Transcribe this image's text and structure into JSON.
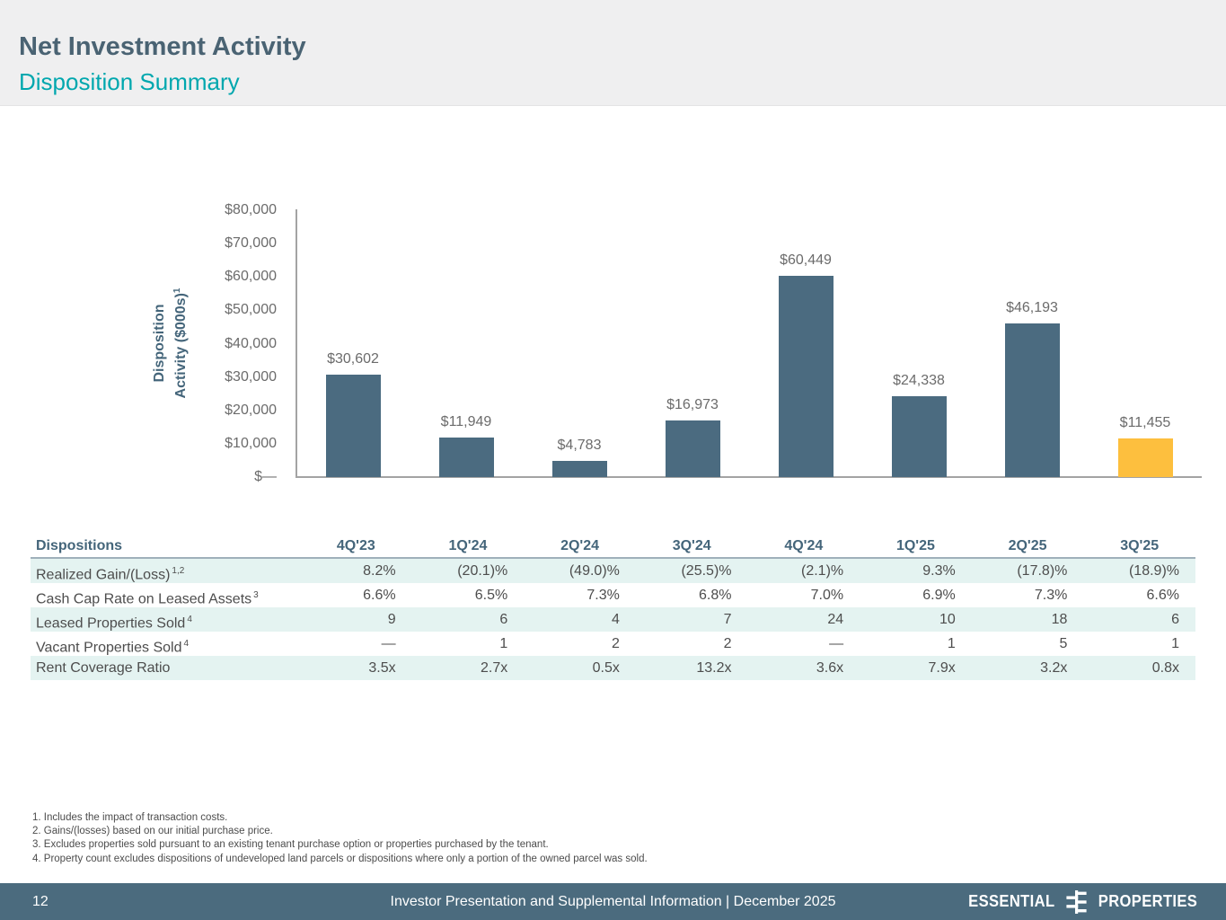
{
  "header": {
    "title": "Net Investment Activity",
    "subtitle": "Disposition Summary"
  },
  "chart_data": {
    "type": "bar",
    "categories": [
      "4Q'23",
      "1Q'24",
      "2Q'24",
      "3Q'24",
      "4Q'24",
      "1Q'25",
      "2Q'25",
      "3Q'25"
    ],
    "values": [
      30602,
      11949,
      4783,
      16973,
      60449,
      24338,
      46193,
      11455
    ],
    "value_labels": [
      "$30,602",
      "$11,949",
      "$4,783",
      "$16,973",
      "$60,449",
      "$24,338",
      "$46,193",
      "$11,455"
    ],
    "title": "",
    "xlabel": "",
    "ylabel": "Disposition Activity ($000s)",
    "ylabel_line1": "Disposition",
    "ylabel_line2": "Activity ($000s)",
    "ylabel_sup": "1",
    "ylim": [
      0,
      80000
    ],
    "ytick_labels": [
      "$80,000",
      "$70,000",
      "$60,000",
      "$50,000",
      "$40,000",
      "$30,000",
      "$20,000",
      "$10,000",
      "$—"
    ],
    "grid": false,
    "legend": false,
    "bar_color": "#4b6b80",
    "highlight_color": "#fdbf3e",
    "highlight_index": 7
  },
  "table": {
    "header": [
      "Dispositions",
      "4Q'23",
      "1Q'24",
      "2Q'24",
      "3Q'24",
      "4Q'24",
      "1Q'25",
      "2Q'25",
      "3Q'25"
    ],
    "rows": [
      {
        "label": "Realized Gain/(Loss)",
        "sup": "1,2",
        "shaded": true,
        "values": [
          "8.2%",
          "(20.1)%",
          "(49.0)%",
          "(25.5)%",
          "(2.1)%",
          "9.3%",
          "(17.8)%",
          "(18.9)%"
        ]
      },
      {
        "label": "Cash Cap Rate on Leased Assets",
        "sup": "3",
        "shaded": false,
        "values": [
          "6.6%",
          "6.5%",
          "7.3%",
          "6.8%",
          "7.0%",
          "6.9%",
          "7.3%",
          "6.6%"
        ]
      },
      {
        "label": "Leased Properties Sold",
        "sup": "4",
        "shaded": true,
        "values": [
          "9",
          "6",
          "4",
          "7",
          "24",
          "10",
          "18",
          "6"
        ]
      },
      {
        "label": "Vacant Properties Sold",
        "sup": "4",
        "shaded": false,
        "values": [
          "—",
          "1",
          "2",
          "2",
          "—",
          "1",
          "5",
          "1"
        ]
      },
      {
        "label": "Rent Coverage Ratio",
        "sup": "",
        "shaded": true,
        "values": [
          "3.5x",
          "2.7x",
          "0.5x",
          "13.2x",
          "3.6x",
          "7.9x",
          "3.2x",
          "0.8x"
        ]
      }
    ]
  },
  "footnotes": [
    "1. Includes the impact of transaction costs.",
    "2. Gains/(losses) based on our initial purchase price.",
    "3. Excludes properties sold pursuant to an existing tenant purchase option or properties purchased by the tenant.",
    "4. Property count excludes dispositions of undeveloped land parcels or dispositions where only a portion of the owned parcel was sold."
  ],
  "footer": {
    "page_number": "12",
    "center_text": "Investor Presentation and Supplemental Information |  December 2025",
    "logo_left": "ESSENTIAL",
    "logo_right": "PROPERTIES"
  },
  "colors": {
    "title_slate": "#4a6373",
    "accent_teal": "#00a7ae",
    "bar_slate": "#4b6b80",
    "bar_highlight": "#fdbf3e",
    "table_row_shade": "#e4f3f1",
    "footer_bg": "#4b6b7e"
  }
}
